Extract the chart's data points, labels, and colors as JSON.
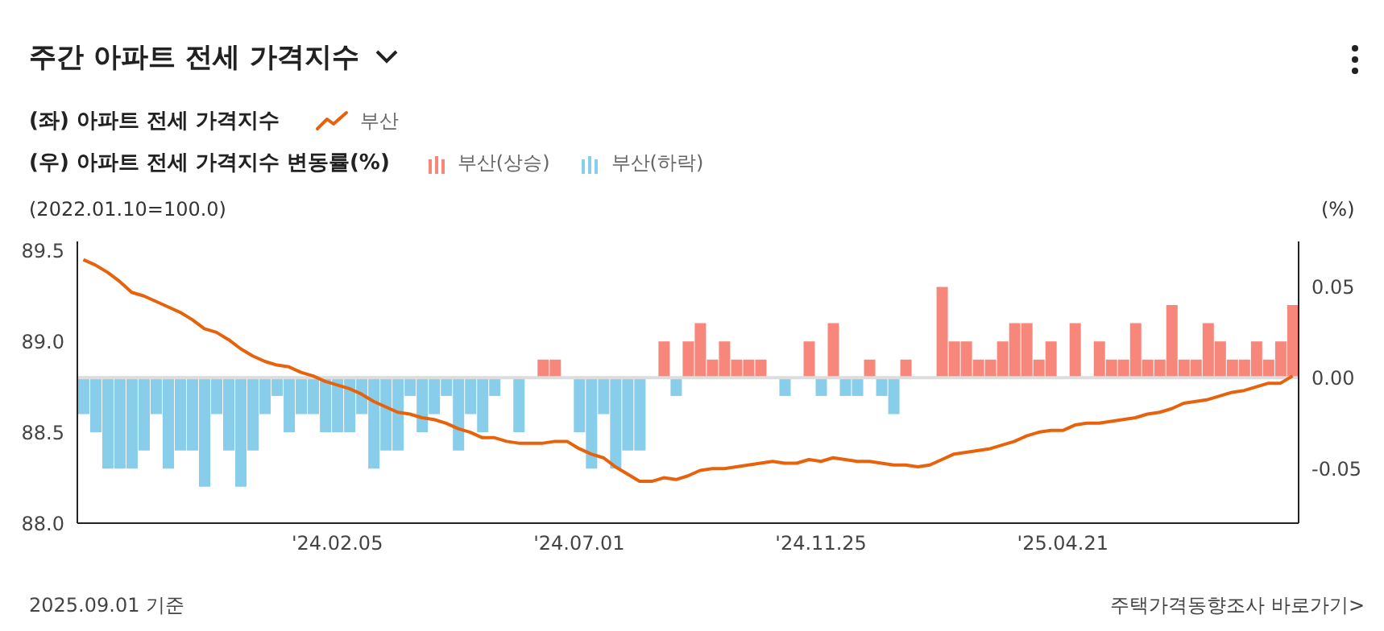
{
  "chart_data": {
    "type": "bar",
    "title": "주간 아파트 전세 가격지수",
    "ylabel": "(2022.01.10=100.0)",
    "y2label": "(%)",
    "annotations": [
      "(좌) 아파트 전세 가격지수",
      "(우) 아파트 전세 가격지수 변동률(%)",
      "2025.09.01 기준",
      "주택가격동향조사 바로가기>"
    ],
    "categories": [
      null,
      null,
      null,
      null,
      null,
      null,
      null,
      null,
      null,
      null,
      null,
      null,
      null,
      null,
      null,
      null,
      null,
      null,
      null,
      null,
      null,
      "'24.02.05",
      null,
      null,
      null,
      null,
      null,
      null,
      null,
      null,
      null,
      null,
      null,
      null,
      null,
      null,
      null,
      null,
      null,
      null,
      null,
      "'24.07.01",
      null,
      null,
      null,
      null,
      null,
      null,
      null,
      null,
      null,
      null,
      null,
      null,
      null,
      null,
      null,
      null,
      null,
      null,
      null,
      "'24.11.25",
      null,
      null,
      null,
      null,
      null,
      null,
      null,
      null,
      null,
      null,
      null,
      null,
      null,
      null,
      null,
      null,
      null,
      null,
      null,
      "'25.04.21",
      null,
      null,
      null,
      null,
      null,
      null,
      null,
      null,
      null,
      null,
      null,
      null,
      null,
      null,
      null,
      null,
      null,
      null,
      null
    ],
    "series": [
      {
        "name": "부산",
        "type": "line",
        "color": "#e8620c",
        "values": [
          89.45,
          89.42,
          89.38,
          89.33,
          89.27,
          89.25,
          89.22,
          89.19,
          89.16,
          89.12,
          89.07,
          89.05,
          89.01,
          88.96,
          88.92,
          88.89,
          88.87,
          88.86,
          88.83,
          88.81,
          88.78,
          88.76,
          88.74,
          88.71,
          88.67,
          88.64,
          88.61,
          88.6,
          88.58,
          88.57,
          88.55,
          88.52,
          88.5,
          88.47,
          88.47,
          88.45,
          88.44,
          88.44,
          88.44,
          88.45,
          88.45,
          88.41,
          88.38,
          88.36,
          88.31,
          88.27,
          88.23,
          88.23,
          88.25,
          88.24,
          88.26,
          88.29,
          88.3,
          88.3,
          88.31,
          88.32,
          88.33,
          88.34,
          88.33,
          88.33,
          88.35,
          88.34,
          88.36,
          88.35,
          88.34,
          88.34,
          88.33,
          88.32,
          88.32,
          88.31,
          88.32,
          88.35,
          88.38,
          88.39,
          88.4,
          88.41,
          88.43,
          88.45,
          88.48,
          88.5,
          88.51,
          88.51,
          88.54,
          88.55,
          88.55,
          88.56,
          88.57,
          88.58,
          88.6,
          88.61,
          88.63,
          88.66,
          88.67,
          88.68,
          88.7,
          88.72,
          88.73,
          88.75,
          88.77,
          88.77,
          88.81
        ]
      },
      {
        "name": "부산(상승)",
        "axis": "y2",
        "color": "#f7877b",
        "values": [
          null,
          null,
          null,
          null,
          null,
          null,
          null,
          null,
          null,
          null,
          null,
          null,
          null,
          null,
          null,
          null,
          null,
          null,
          null,
          null,
          null,
          null,
          null,
          null,
          null,
          null,
          null,
          null,
          null,
          null,
          null,
          null,
          null,
          null,
          null,
          null,
          null,
          null,
          0.01,
          0.01,
          null,
          null,
          null,
          null,
          null,
          null,
          null,
          null,
          0.02,
          null,
          0.02,
          0.03,
          0.01,
          0.02,
          0.01,
          0.01,
          0.01,
          null,
          null,
          null,
          0.02,
          null,
          0.03,
          null,
          null,
          0.01,
          null,
          null,
          0.01,
          null,
          null,
          0.05,
          0.02,
          0.02,
          0.01,
          0.01,
          0.02,
          0.03,
          0.03,
          0.01,
          0.02,
          null,
          0.03,
          null,
          0.02,
          0.01,
          0.01,
          0.03,
          0.01,
          0.01,
          0.04,
          0.01,
          0.01,
          0.03,
          0.02,
          0.01,
          0.01,
          0.02,
          0.01,
          0.02,
          0.04
        ]
      },
      {
        "name": "부산(하락)",
        "axis": "y2",
        "color": "#88cdea",
        "values": [
          -0.02,
          -0.03,
          -0.05,
          -0.05,
          -0.05,
          -0.04,
          -0.02,
          -0.05,
          -0.04,
          -0.04,
          -0.06,
          -0.02,
          -0.04,
          -0.06,
          -0.04,
          -0.02,
          -0.01,
          -0.03,
          -0.02,
          -0.02,
          -0.03,
          -0.03,
          -0.03,
          -0.02,
          -0.05,
          -0.04,
          -0.04,
          -0.01,
          -0.03,
          -0.02,
          -0.01,
          -0.04,
          -0.02,
          -0.03,
          -0.01,
          null,
          -0.03,
          null,
          null,
          null,
          null,
          -0.03,
          -0.05,
          -0.02,
          -0.05,
          -0.04,
          -0.04,
          null,
          null,
          -0.01,
          null,
          null,
          null,
          null,
          null,
          null,
          null,
          null,
          -0.01,
          null,
          null,
          -0.01,
          null,
          -0.01,
          -0.01,
          null,
          -0.01,
          -0.02,
          null,
          null,
          null,
          null,
          null,
          null,
          null,
          null,
          null,
          null,
          null,
          null,
          null,
          null,
          null,
          null,
          null,
          null,
          null,
          null,
          null,
          null,
          null,
          null,
          null,
          null,
          null,
          null,
          null,
          null,
          null,
          null,
          null
        ]
      }
    ],
    "stacked": true,
    "ylim": [
      88.0,
      89.55
    ],
    "yticks": [
      {
        "value": 88,
        "label": "88.0"
      },
      {
        "value": 88.5,
        "label": "88.5"
      },
      {
        "value": 89,
        "label": "89.0"
      },
      {
        "value": 89.5,
        "label": "89.5"
      }
    ],
    "y2lim": [
      -0.08,
      0.075
    ],
    "y2ticks": [
      {
        "value": -0.05,
        "label": "-0.05"
      },
      {
        "value": 0,
        "label": "0.00"
      },
      {
        "value": 0.05,
        "label": "0.05"
      }
    ],
    "ref_lines": [
      {
        "axis": "y2",
        "value": 0,
        "color": "#dddddd"
      }
    ],
    "legend": "top left",
    "grid": false
  }
}
